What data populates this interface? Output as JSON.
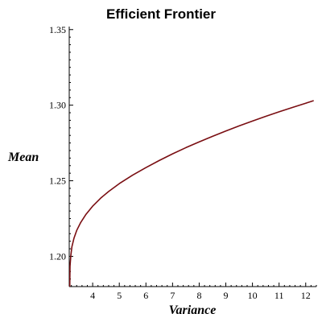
{
  "chart_data": {
    "type": "line",
    "title": "Efficient Frontier",
    "xlabel": "Variance",
    "ylabel": "Mean",
    "xlim": [
      3.12,
      12.4
    ],
    "ylim": [
      1.18,
      1.352
    ],
    "grid": false,
    "line_color": "#7a0e12",
    "x_ticks": [
      4,
      5,
      6,
      7,
      8,
      9,
      10,
      11,
      12
    ],
    "y_ticks": [
      1.2,
      1.25,
      1.3,
      1.35
    ],
    "x_tick_labels": [
      "4",
      "5",
      "6",
      "7",
      "8",
      "9",
      "10",
      "11",
      "12"
    ],
    "y_tick_labels": [
      "1.20",
      "1.25",
      "1.30",
      "1.35"
    ],
    "series": [
      {
        "x": [
          3.14,
          3.15,
          3.18,
          3.22,
          3.3,
          3.4,
          3.55,
          3.75,
          4.0,
          4.3,
          4.6,
          5.0,
          5.5,
          6.0,
          6.5,
          7.0,
          7.5,
          8.0,
          8.5,
          9.0,
          9.5,
          10.0,
          10.5,
          11.0,
          11.5,
          12.0,
          12.3
        ],
        "y": [
          1.18,
          1.1935,
          1.2005,
          1.2063,
          1.2121,
          1.2171,
          1.2224,
          1.2278,
          1.2332,
          1.2385,
          1.2429,
          1.2481,
          1.2537,
          1.2587,
          1.2634,
          1.2678,
          1.2719,
          1.2757,
          1.2794,
          1.2829,
          1.2863,
          1.2895,
          1.2926,
          1.2956,
          1.2985,
          1.3013,
          1.303
        ]
      }
    ]
  }
}
